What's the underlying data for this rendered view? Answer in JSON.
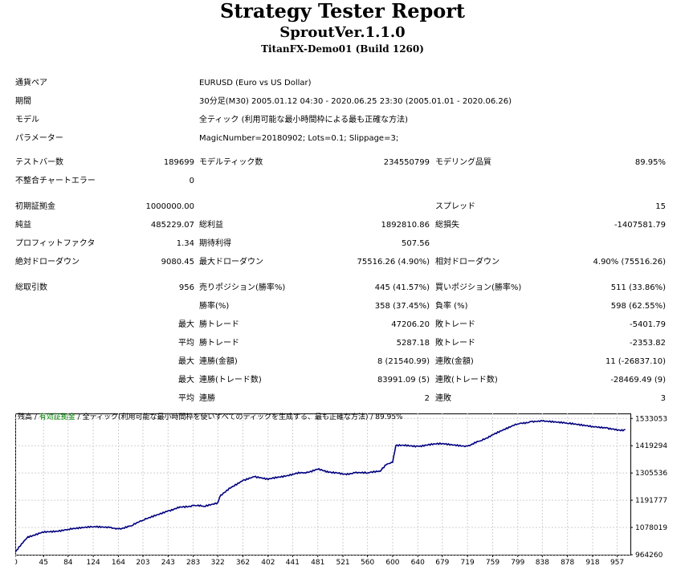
{
  "report": {
    "title": "Strategy Tester Report",
    "subtitle": "SproutVer.1.1.0",
    "server": "TitanFX-Demo01 (Build 1260)"
  },
  "info": {
    "symbol": {
      "label": "通貨ペア",
      "value": "EURUSD (Euro vs US Dollar)"
    },
    "period": {
      "label": "期間",
      "value": "30分足(M30) 2005.01.12 04:30 - 2020.06.25 23:30 (2005.01.01 - 2020.06.26)"
    },
    "model": {
      "label": "モデル",
      "value": "全ティック (利用可能な最小時間枠による最も正確な方法)"
    },
    "params": {
      "label": "パラメーター",
      "value": "MagicNumber=20180902; Lots=0.1; Slippage=3;"
    }
  },
  "stats": {
    "bars_label": "テストバー数",
    "bars": "189699",
    "ticks_label": "モデルティック数",
    "ticks": "234550799",
    "quality_label": "モデリング品質",
    "quality": "89.95%",
    "mismatch_label": "不整合チャートエラー",
    "mismatch": "0",
    "deposit_label": "初期証拠金",
    "deposit": "1000000.00",
    "spread_label": "スプレッド",
    "spread": "15",
    "net_label": "純益",
    "net": "485229.07",
    "gross_profit_label": "総利益",
    "gross_profit": "1892810.86",
    "gross_loss_label": "総損失",
    "gross_loss": "-1407581.79",
    "pf_label": "プロフィットファクタ",
    "pf": "1.34",
    "expected_label": "期待利得",
    "expected": "507.56",
    "abs_dd_label": "絶対ドローダウン",
    "abs_dd": "9080.45",
    "max_dd_label": "最大ドローダウン",
    "max_dd": "75516.26 (4.90%)",
    "rel_dd_label": "相対ドローダウン",
    "rel_dd": "4.90% (75516.26)",
    "trades_label": "総取引数",
    "trades": "956",
    "short_label": "売りポジション(勝率%)",
    "short": "445 (41.57%)",
    "long_label": "買いポジション(勝率%)",
    "long": "511 (33.86%)",
    "win_pct_label": "勝率(%)",
    "win_pct": "358 (37.45%)",
    "loss_pct_label": "負率 (%)",
    "loss_pct": "598 (62.55%)",
    "max_word": "最大",
    "avg_word": "平均",
    "win_trade_label": "勝トレード",
    "max_win": "47206.20",
    "loss_trade_label": "敗トレード",
    "max_loss": "-5401.79",
    "avg_win": "5287.18",
    "avg_loss": "-2353.82",
    "cons_win_money_label": "連勝(金額)",
    "cons_win_money": "8 (21540.99)",
    "cons_loss_money_label": "連敗(金額)",
    "cons_loss_money": "11 (-26837.10)",
    "cons_win_trades_label": "連勝(トレード数)",
    "cons_win_trades": "83991.09 (5)",
    "cons_loss_trades_label": "連敗(トレード数)",
    "cons_loss_trades": "-28469.49 (9)",
    "avg_cons_win_label": "連勝",
    "avg_cons_win": "2",
    "avg_cons_loss_label": "連敗",
    "avg_cons_loss": "3"
  },
  "chart_legend": {
    "balance": "残高",
    "sep1": " / ",
    "equity": "有効証拠金",
    "sep2": " / ",
    "model": "全ティック(利用可能な最小時間枠を使いすべてのティックを生成する、最も正確な方法)",
    "sep3": " / ",
    "quality": "89.95%"
  },
  "chart_data": {
    "type": "line",
    "x_ticks": [
      0,
      45,
      84,
      124,
      164,
      203,
      243,
      283,
      322,
      362,
      402,
      441,
      481,
      521,
      560,
      600,
      640,
      679,
      719,
      759,
      799,
      838,
      878,
      918,
      957
    ],
    "y_ticks": [
      1533053,
      1419294,
      1305536,
      1191777,
      1078019,
      964260
    ],
    "xlim": [
      0,
      978
    ],
    "ylim": [
      964260,
      1554000
    ],
    "series": [
      {
        "x": [
          0,
          10,
          20,
          45,
          84,
          124,
          150,
          164,
          185,
          203,
          243,
          260,
          283,
          300,
          322,
          325,
          340,
          362,
          380,
          402,
          441,
          460,
          481,
          500,
          521,
          540,
          560,
          580,
          590,
          600,
          605,
          640,
          679,
          719,
          740,
          759,
          799,
          820,
          838,
          878,
          918,
          940,
          957,
          970
        ],
        "y": [
          975000,
          1010000,
          1040000,
          1057000,
          1070000,
          1080000,
          1078000,
          1072000,
          1085000,
          1108000,
          1148000,
          1160000,
          1170000,
          1166000,
          1182000,
          1205000,
          1242000,
          1275000,
          1290000,
          1278000,
          1301000,
          1307000,
          1320000,
          1310000,
          1300000,
          1306000,
          1305000,
          1312000,
          1340000,
          1350000,
          1420000,
          1418000,
          1428000,
          1418000,
          1440000,
          1465000,
          1510000,
          1520000,
          1522000,
          1512000,
          1500000,
          1495000,
          1483000,
          1487000
        ]
      }
    ],
    "grid": true,
    "line_color": "#00007f"
  }
}
